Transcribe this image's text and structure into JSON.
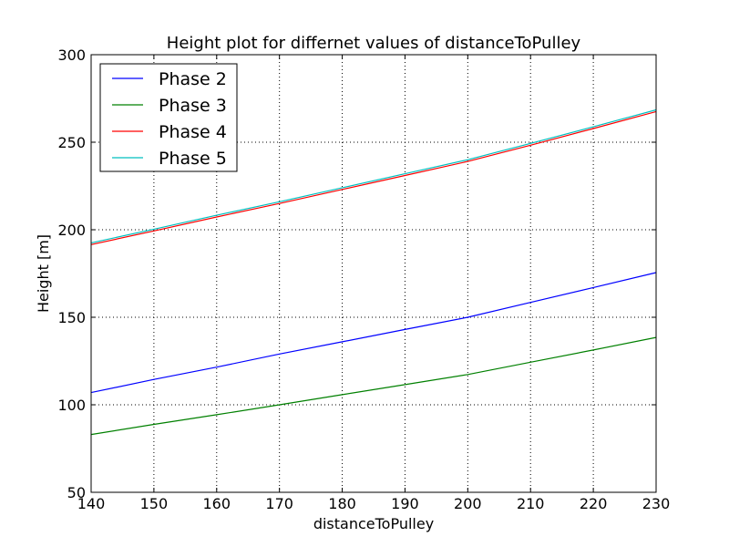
{
  "chart_data": {
    "type": "line",
    "title": "Height plot for differnet values of distanceToPulley",
    "xlabel": "distanceToPulley",
    "ylabel": "Height [m]",
    "xlim": [
      140,
      230
    ],
    "ylim": [
      50,
      300
    ],
    "xticks": [
      140,
      150,
      160,
      170,
      180,
      190,
      200,
      210,
      220,
      230
    ],
    "yticks": [
      50,
      100,
      150,
      200,
      250,
      300
    ],
    "x": [
      140,
      150,
      160,
      170,
      180,
      190,
      200,
      210,
      220,
      230
    ],
    "grid": true,
    "legend_position": "top-left",
    "series": [
      {
        "name": "Phase 2",
        "color": "#0000ff",
        "values": [
          107,
          114.5,
          121.5,
          129,
          136,
          143,
          150,
          158.5,
          167,
          175.5
        ]
      },
      {
        "name": "Phase 3",
        "color": "#008000",
        "values": [
          83,
          88.8,
          94.3,
          100,
          105.8,
          111.5,
          117.3,
          124.3,
          131.3,
          138.5
        ]
      },
      {
        "name": "Phase 4",
        "color": "#ff0000",
        "values": [
          191.5,
          199.3,
          207.3,
          215,
          223,
          231,
          239,
          248.3,
          257.8,
          267.5
        ]
      },
      {
        "name": "Phase 5",
        "color": "#00bfbf",
        "values": [
          192.5,
          200.3,
          208.3,
          216,
          224,
          232,
          240,
          249.3,
          258.8,
          268.5
        ]
      }
    ]
  }
}
